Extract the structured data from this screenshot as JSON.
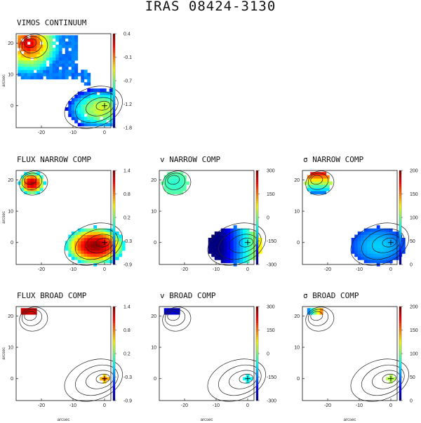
{
  "title": "IRAS 08424-3130",
  "colors": {
    "frame": "#111111",
    "contour": "#222222"
  },
  "chart_data": [
    {
      "type": "heatmap",
      "title": "VIMOS CONTINUUM",
      "xticks": [
        "-20",
        "-10",
        "0"
      ],
      "yticks": [
        "20",
        "10",
        "0"
      ],
      "xlabel": "",
      "ylabel": "arcsec",
      "xlim": [
        -28,
        2
      ],
      "ylim": [
        -7,
        23
      ],
      "colorbar": {
        "ticks": [
          "0.4",
          "-0.1",
          "-0.7",
          "-1.2",
          "-1.8"
        ],
        "range": [
          -1.8,
          0.4
        ]
      },
      "marker": [
        0,
        0
      ]
    },
    {
      "type": "heatmap",
      "title": "FLUX NARROW COMP",
      "xticks": [
        "-20",
        "-10",
        "0"
      ],
      "yticks": [
        "20",
        "10",
        "0"
      ],
      "xlabel": "",
      "ylabel": "arcsec",
      "xlim": [
        -28,
        2
      ],
      "ylim": [
        -7,
        23
      ],
      "colorbar": {
        "ticks": [
          "1.4",
          "0.8",
          "0.2",
          "-0.3",
          "-0.9"
        ],
        "range": [
          -0.9,
          1.4
        ]
      },
      "marker": [
        0,
        0
      ]
    },
    {
      "type": "heatmap",
      "title": "v NARROW COMP",
      "xticks": [
        "-20",
        "-10",
        "0"
      ],
      "yticks": [
        "20",
        "10",
        "0"
      ],
      "xlabel": "",
      "ylabel": "",
      "xlim": [
        -28,
        2
      ],
      "ylim": [
        -7,
        23
      ],
      "colorbar": {
        "ticks": [
          "300",
          "150",
          "0",
          "-150",
          "-300"
        ],
        "range": [
          -300,
          300
        ]
      },
      "marker": [
        0,
        0
      ]
    },
    {
      "type": "heatmap",
      "title": "σ NARROW COMP",
      "xticks": [
        "-20",
        "-10",
        "0"
      ],
      "yticks": [
        "20",
        "10",
        "0"
      ],
      "xlabel": "",
      "ylabel": "",
      "xlim": [
        -28,
        2
      ],
      "ylim": [
        -7,
        23
      ],
      "colorbar": {
        "ticks": [
          "200",
          "150",
          "100",
          "50",
          "0"
        ],
        "range": [
          0,
          200
        ]
      },
      "marker": [
        0,
        0
      ]
    },
    {
      "type": "heatmap",
      "title": "FLUX BROAD COMP",
      "xticks": [
        "-20",
        "-10",
        "0"
      ],
      "yticks": [
        "20",
        "10",
        "0"
      ],
      "xlabel": "arcsec",
      "ylabel": "arcsec",
      "xlim": [
        -28,
        2
      ],
      "ylim": [
        -7,
        23
      ],
      "colorbar": {
        "ticks": [
          "1.4",
          "0.8",
          "0.2",
          "-0.3",
          "-0.9"
        ],
        "range": [
          -0.9,
          1.4
        ]
      },
      "marker": [
        0,
        0
      ]
    },
    {
      "type": "heatmap",
      "title": "v BROAD COMP",
      "xticks": [
        "-20",
        "-10",
        "0"
      ],
      "yticks": [
        "20",
        "10",
        "0"
      ],
      "xlabel": "arcsec",
      "ylabel": "",
      "xlim": [
        -28,
        2
      ],
      "ylim": [
        -7,
        23
      ],
      "colorbar": {
        "ticks": [
          "300",
          "150",
          "0",
          "-150",
          "-300"
        ],
        "range": [
          -300,
          300
        ]
      },
      "marker": [
        0,
        0
      ]
    },
    {
      "type": "heatmap",
      "title": "σ BROAD COMP",
      "xticks": [
        "-20",
        "-10",
        "0"
      ],
      "yticks": [
        "20",
        "10",
        "0"
      ],
      "xlabel": "arcsec",
      "ylabel": "",
      "xlim": [
        -28,
        2
      ],
      "ylim": [
        -7,
        23
      ],
      "colorbar": {
        "ticks": [
          "200",
          "150",
          "100",
          "50",
          "0"
        ],
        "range": [
          0,
          200
        ]
      },
      "marker": [
        0,
        0
      ]
    }
  ]
}
